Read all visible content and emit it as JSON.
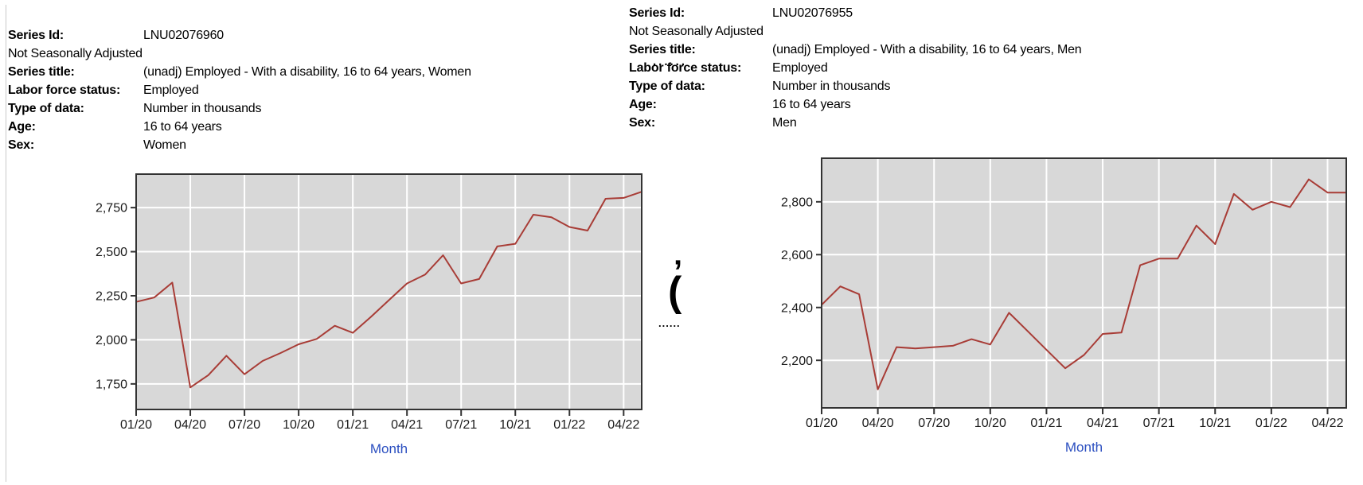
{
  "page": {
    "background": "#ffffff",
    "edge_line_color": "#c9c9c9"
  },
  "panels": [
    {
      "id": "women",
      "info_rows": [
        {
          "label": "Series Id:",
          "value": "LNU02076960"
        },
        {
          "label": "",
          "value": "Not Seasonally Adjusted"
        },
        {
          "label": "Series title:",
          "value": "(unadj) Employed - With a disability, 16 to 64 years, Women"
        },
        {
          "label": "Labor force status:",
          "value": "Employed"
        },
        {
          "label": "Type of data:",
          "value": "Number in thousands"
        },
        {
          "label": "Age:",
          "value": "16 to 64 years"
        },
        {
          "label": "Sex:",
          "value": "Women"
        }
      ]
    },
    {
      "id": "men",
      "info_rows": [
        {
          "label": "Series Id:",
          "value": "LNU02076955"
        },
        {
          "label": "",
          "value": "Not Seasonally Adjusted"
        },
        {
          "label": "Series title:",
          "value": "(unadj) Employed - With a disability, 16 to 64 years, Men"
        },
        {
          "label": "Labor force status:",
          "value": "Employed"
        },
        {
          "label": "Type of data:",
          "value": "Number in thousands"
        },
        {
          "label": "Age:",
          "value": "16 to 64 years"
        },
        {
          "label": "Sex:",
          "value": "Men"
        }
      ]
    }
  ],
  "chart_data": [
    {
      "id": "women",
      "type": "line",
      "title": "",
      "xlabel": "Month",
      "ylabel": "",
      "months": [
        "01/20",
        "02/20",
        "03/20",
        "04/20",
        "05/20",
        "06/20",
        "07/20",
        "08/20",
        "09/20",
        "10/20",
        "11/20",
        "12/20",
        "01/21",
        "02/21",
        "03/21",
        "04/21",
        "05/21",
        "06/21",
        "07/21",
        "08/21",
        "09/21",
        "10/21",
        "11/21",
        "12/21",
        "01/22",
        "02/22",
        "03/22",
        "04/22",
        "05/22"
      ],
      "tick_every": 3,
      "values": [
        2215,
        2240,
        2325,
        1730,
        1800,
        1910,
        1805,
        1880,
        1925,
        1975,
        2005,
        2080,
        2040,
        2130,
        2225,
        2320,
        2370,
        2480,
        2320,
        2345,
        2530,
        2545,
        2710,
        2695,
        2640,
        2620,
        2800,
        2805,
        2840
      ],
      "yticks": [
        1750,
        2000,
        2250,
        2500,
        2750
      ],
      "ylim": [
        1605,
        2940
      ],
      "grid": true,
      "legend": "none",
      "line_color": "#a83c36",
      "plot_bg": "#d8d8d8",
      "grid_color": "#ffffff",
      "axis_color": "#333333",
      "tick_label_color": "#1b1b1b",
      "xlabel_color": "#2b4fc0"
    },
    {
      "id": "men",
      "type": "line",
      "title": "",
      "xlabel": "Month",
      "ylabel": "",
      "months": [
        "01/20",
        "02/20",
        "03/20",
        "04/20",
        "05/20",
        "06/20",
        "07/20",
        "08/20",
        "09/20",
        "10/20",
        "11/20",
        "12/20",
        "01/21",
        "02/21",
        "03/21",
        "04/21",
        "05/21",
        "06/21",
        "07/21",
        "08/21",
        "09/21",
        "10/21",
        "11/21",
        "12/21",
        "01/22",
        "02/22",
        "03/22",
        "04/22",
        "05/22"
      ],
      "tick_every": 3,
      "values": [
        2410,
        2480,
        2450,
        2090,
        2250,
        2245,
        2250,
        2255,
        2280,
        2260,
        2380,
        2310,
        2240,
        2170,
        2220,
        2300,
        2305,
        2560,
        2585,
        2585,
        2710,
        2640,
        2830,
        2770,
        2800,
        2780,
        2885,
        2835,
        2835
      ],
      "yticks": [
        2200,
        2400,
        2600,
        2800
      ],
      "ylim": [
        2020,
        2965
      ],
      "grid": true,
      "legend": "none",
      "line_color": "#a83c36",
      "plot_bg": "#d8d8d8",
      "grid_color": "#ffffff",
      "axis_color": "#333333",
      "tick_label_color": "#1b1b1b",
      "xlabel_color": "#2b4fc0"
    }
  ],
  "artifacts": {
    "dots_top": "......",
    "dots_bottom": "......",
    "big_quote": "’",
    "big_paren": "("
  }
}
